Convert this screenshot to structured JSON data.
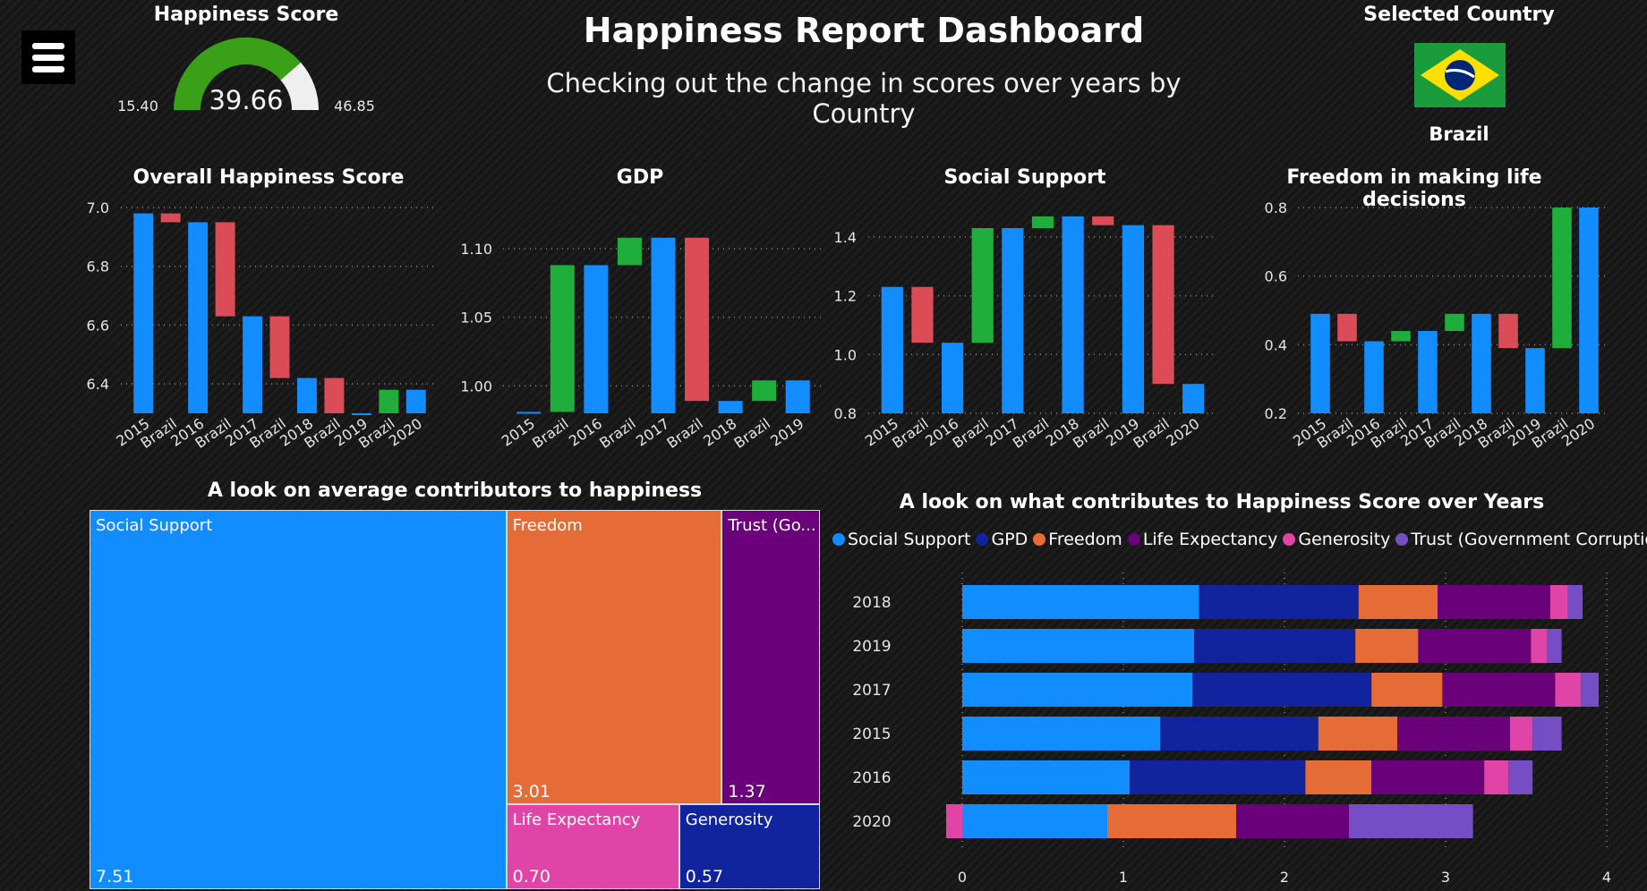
{
  "header": {
    "title": "Happiness Report Dashboard",
    "subtitle": "Checking out the change in scores over years by Country"
  },
  "gauge": {
    "title": "Happiness Score",
    "value": 39.66,
    "value_label": "39.66",
    "min": 15.4,
    "min_label": "15.40",
    "max": 46.85,
    "max_label": "46.85",
    "fill_color": "#3aa017",
    "rest_color": "#efefef"
  },
  "selected": {
    "title": "Selected Country",
    "country": "Brazil",
    "flag": "brazil-flag-icon"
  },
  "colors": {
    "increase": "#1fad3b",
    "decrease": "#db4c57",
    "total": "#118dff"
  },
  "chart_data": [
    {
      "id": "overall",
      "type": "waterfall",
      "title": "Overall Happiness Score",
      "categories": [
        {
          "year": "2015",
          "country": "Brazil"
        },
        {
          "year": "2016",
          "country": "Brazil"
        },
        {
          "year": "2017",
          "country": "Brazil"
        },
        {
          "year": "2018",
          "country": "Brazil"
        },
        {
          "year": "2019",
          "country": "Brazil"
        },
        {
          "year": "2020",
          "country": ""
        }
      ],
      "totals": [
        6.98,
        6.95,
        6.63,
        6.42,
        6.3,
        6.38
      ],
      "ylim": [
        6.3,
        7.0
      ],
      "yticks": [
        6.4,
        6.6,
        6.8,
        7.0
      ],
      "ytick_labels": [
        "6.4",
        "6.6",
        "6.8",
        "7.0"
      ],
      "grid": true
    },
    {
      "id": "gdp",
      "type": "waterfall",
      "title": "GDP",
      "categories": [
        {
          "year": "2015",
          "country": "Brazil"
        },
        {
          "year": "2016",
          "country": "Brazil"
        },
        {
          "year": "2017",
          "country": "Brazil"
        },
        {
          "year": "2018",
          "country": "Brazil"
        },
        {
          "year": "2019",
          "country": ""
        }
      ],
      "totals": [
        0.981,
        1.088,
        1.108,
        0.989,
        1.004
      ],
      "ylim": [
        0.98,
        1.13
      ],
      "yticks": [
        1.0,
        1.05,
        1.1
      ],
      "ytick_labels": [
        "1.00",
        "1.05",
        "1.10"
      ],
      "grid": true
    },
    {
      "id": "social",
      "type": "waterfall",
      "title": "Social Support",
      "categories": [
        {
          "year": "2015",
          "country": "Brazil"
        },
        {
          "year": "2016",
          "country": "Brazil"
        },
        {
          "year": "2017",
          "country": "Brazil"
        },
        {
          "year": "2018",
          "country": "Brazil"
        },
        {
          "year": "2019",
          "country": "Brazil"
        },
        {
          "year": "2020",
          "country": ""
        }
      ],
      "totals": [
        1.23,
        1.04,
        1.43,
        1.47,
        1.44,
        0.9
      ],
      "ylim": [
        0.8,
        1.5
      ],
      "yticks": [
        0.8,
        1.0,
        1.2,
        1.4
      ],
      "ytick_labels": [
        "0.8",
        "1.0",
        "1.2",
        "1.4"
      ],
      "grid": true
    },
    {
      "id": "freedom",
      "type": "waterfall",
      "title": "Freedom in making life decisions",
      "categories": [
        {
          "year": "2015",
          "country": "Brazil"
        },
        {
          "year": "2016",
          "country": "Brazil"
        },
        {
          "year": "2017",
          "country": "Brazil"
        },
        {
          "year": "2018",
          "country": "Brazil"
        },
        {
          "year": "2019",
          "country": "Brazil"
        },
        {
          "year": "2020",
          "country": ""
        }
      ],
      "totals": [
        0.49,
        0.41,
        0.44,
        0.49,
        0.39,
        0.8
      ],
      "ylim": [
        0.2,
        0.8
      ],
      "yticks": [
        0.2,
        0.4,
        0.6,
        0.8
      ],
      "ytick_labels": [
        "0.2",
        "0.4",
        "0.6",
        "0.8"
      ],
      "grid": true
    },
    {
      "id": "treemap",
      "type": "treemap",
      "title": "A look on average contributors to happiness",
      "items": [
        {
          "label": "Social Support",
          "value": 7.51,
          "value_label": "7.51",
          "color": "#118dff"
        },
        {
          "label": "Freedom",
          "value": 3.01,
          "value_label": "3.01",
          "color": "#e66c37"
        },
        {
          "label": "Trust (Go...",
          "value": 1.37,
          "value_label": "1.37",
          "color": "#6b007b"
        },
        {
          "label": "Life Expectancy",
          "value": 0.7,
          "value_label": "0.70",
          "color": "#e044a7"
        },
        {
          "label": "Generosity",
          "value": 0.57,
          "value_label": "0.57",
          "color": "#12239e"
        }
      ]
    },
    {
      "id": "stacked",
      "type": "bar",
      "stacked": true,
      "orientation": "horizontal",
      "title": "A look on what contributes to Happiness Score over Years",
      "legend_position": "top",
      "series": [
        {
          "name": "Social Support",
          "color": "#118dff"
        },
        {
          "name": "GPD",
          "color": "#12239e"
        },
        {
          "name": "Freedom",
          "color": "#e66c37"
        },
        {
          "name": "Life Expectancy",
          "color": "#6b007b"
        },
        {
          "name": "Generosity",
          "color": "#e044a7"
        },
        {
          "name": "Trust (Government Corruption)",
          "color": "#744ec2"
        }
      ],
      "categories": [
        "2018",
        "2019",
        "2017",
        "2015",
        "2016",
        "2020"
      ],
      "rows": [
        {
          "year": "2018",
          "values": [
            1.47,
            0.99,
            0.49,
            0.7,
            0.11,
            0.09
          ],
          "offset": 0
        },
        {
          "year": "2019",
          "values": [
            1.44,
            1.0,
            0.39,
            0.7,
            0.1,
            0.09
          ],
          "offset": 0
        },
        {
          "year": "2017",
          "values": [
            1.43,
            1.11,
            0.44,
            0.7,
            0.16,
            0.11
          ],
          "offset": 0
        },
        {
          "year": "2015",
          "values": [
            1.23,
            0.98,
            0.49,
            0.7,
            0.14,
            0.18
          ],
          "offset": 0
        },
        {
          "year": "2016",
          "values": [
            1.04,
            1.09,
            0.41,
            0.7,
            0.15,
            0.15
          ],
          "offset": 0
        },
        {
          "year": "2020",
          "values": [
            0.9,
            0,
            0.8,
            0.7,
            0.1,
            0.77
          ],
          "offset": -0.1
        }
      ],
      "xlim": [
        0,
        4
      ],
      "xticks": [
        0,
        1,
        2,
        3,
        4
      ],
      "xtick_labels": [
        "0",
        "1",
        "2",
        "3",
        "4"
      ],
      "grid": true
    }
  ]
}
